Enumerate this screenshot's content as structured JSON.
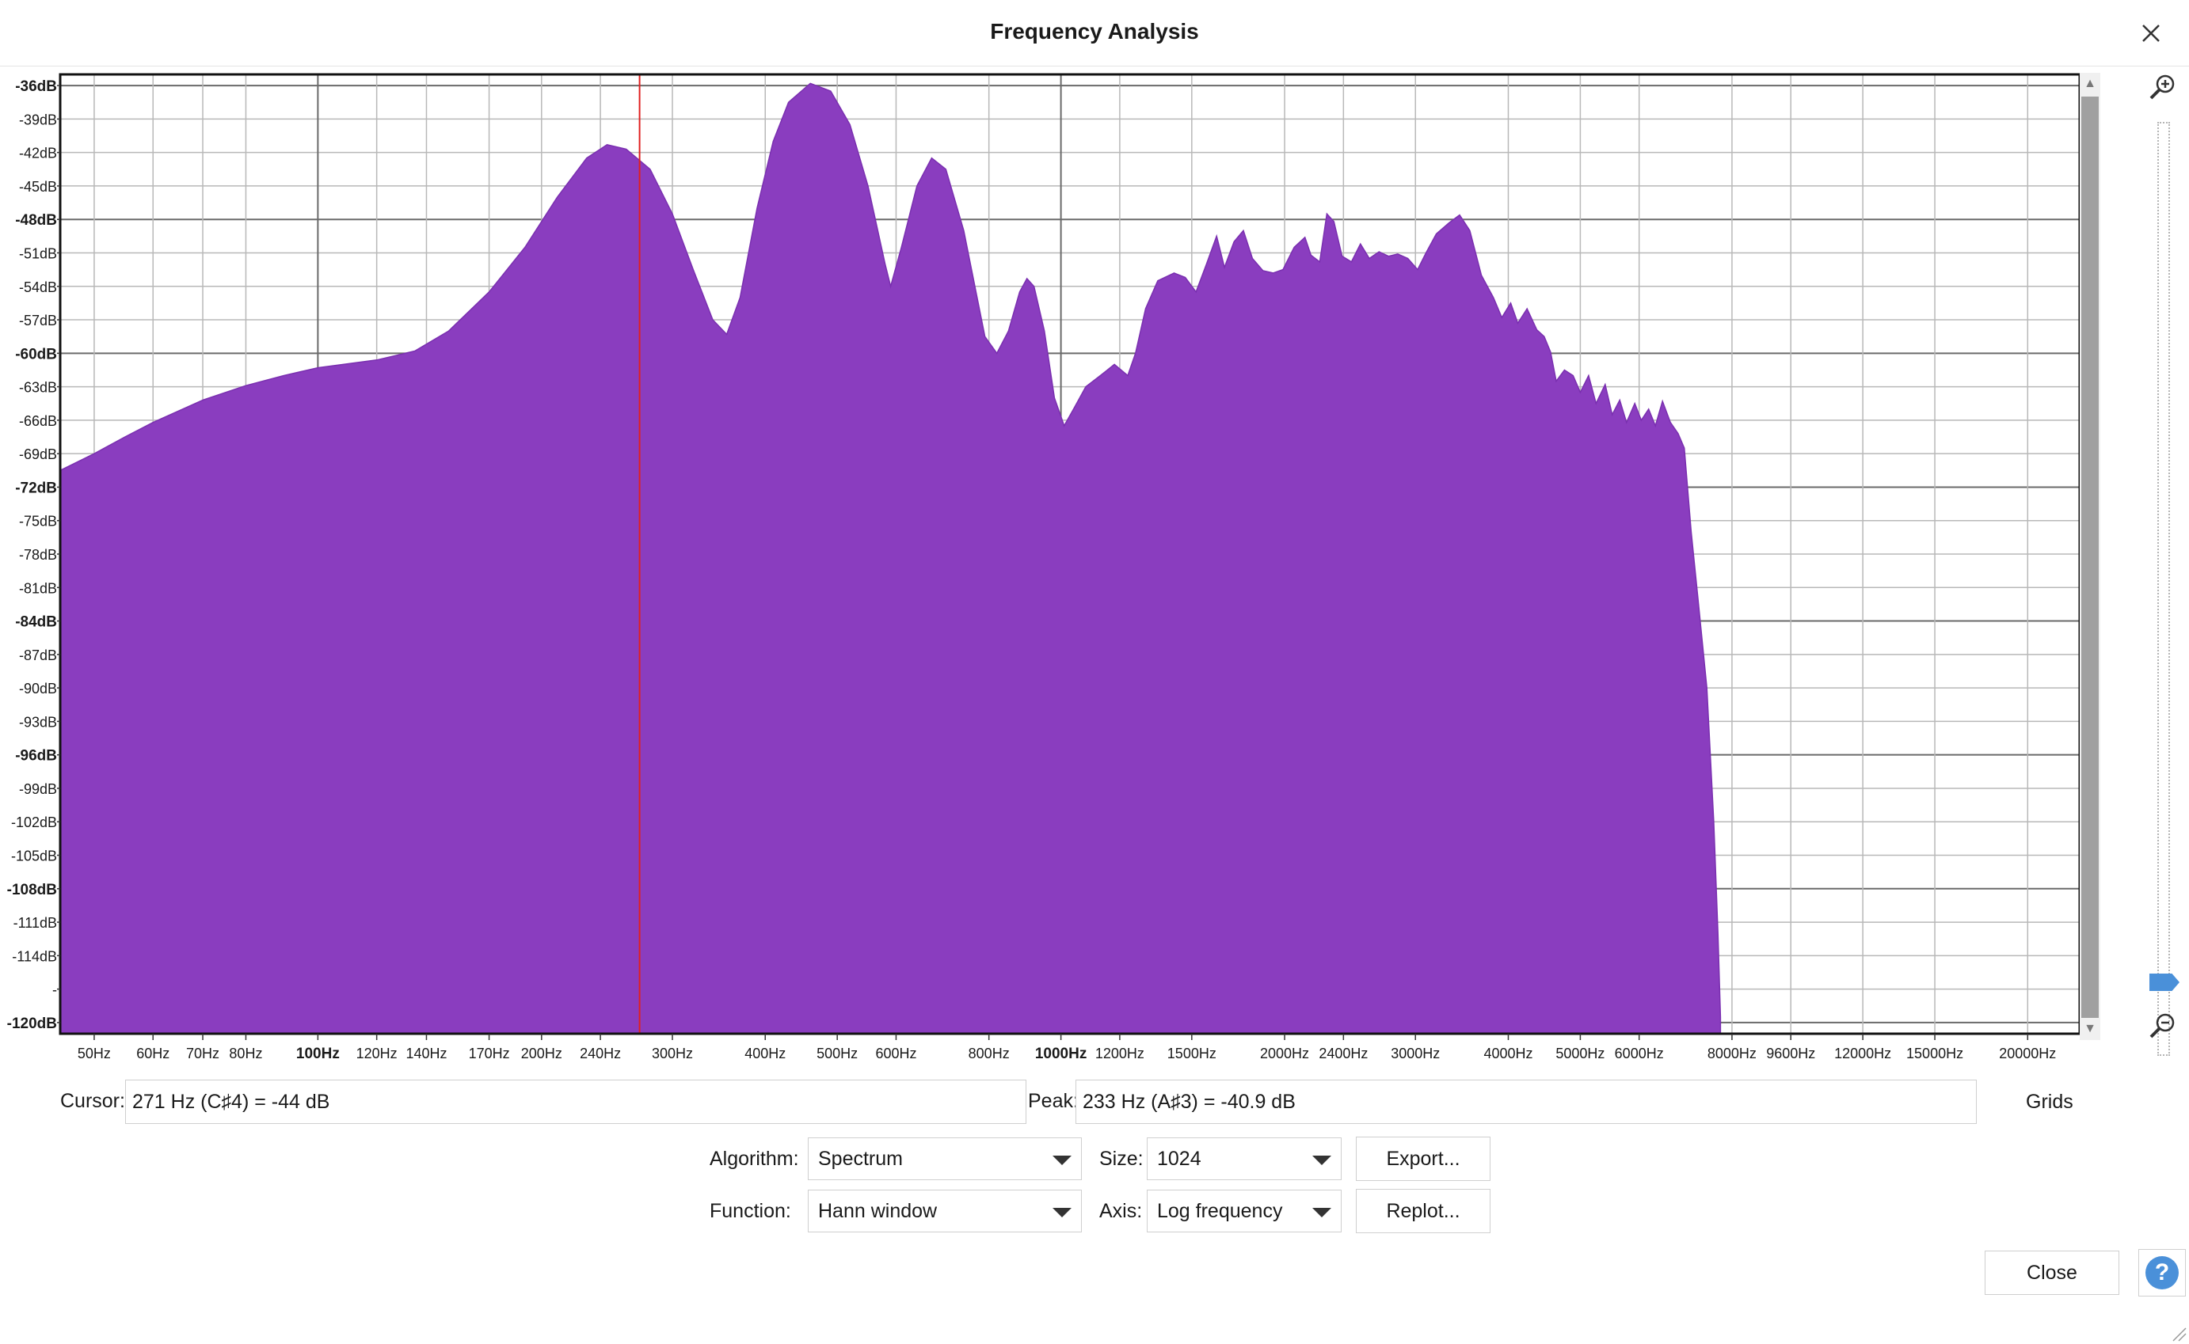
{
  "window": {
    "title": "Frequency Analysis"
  },
  "chart_data": {
    "type": "area",
    "xscale": "log",
    "xlim": [
      45,
      23500
    ],
    "ylim": [
      -121,
      -35
    ],
    "grid": true,
    "color": "#8a3dbf",
    "cursor_frequency": 271,
    "x_tick_labels": [
      {
        "f": 50,
        "label": "50Hz",
        "major": false
      },
      {
        "f": 60,
        "label": "60Hz",
        "major": false
      },
      {
        "f": 70,
        "label": "70Hz",
        "major": false
      },
      {
        "f": 80,
        "label": "80Hz",
        "major": false
      },
      {
        "f": 100,
        "label": "100Hz",
        "major": true
      },
      {
        "f": 120,
        "label": "120Hz",
        "major": false
      },
      {
        "f": 140,
        "label": "140Hz",
        "major": false
      },
      {
        "f": 170,
        "label": "170Hz",
        "major": false
      },
      {
        "f": 200,
        "label": "200Hz",
        "major": false
      },
      {
        "f": 240,
        "label": "240Hz",
        "major": false
      },
      {
        "f": 300,
        "label": "300Hz",
        "major": false
      },
      {
        "f": 400,
        "label": "400Hz",
        "major": false
      },
      {
        "f": 500,
        "label": "500Hz",
        "major": false
      },
      {
        "f": 600,
        "label": "600Hz",
        "major": false
      },
      {
        "f": 800,
        "label": "800Hz",
        "major": false
      },
      {
        "f": 1000,
        "label": "1000Hz",
        "major": true
      },
      {
        "f": 1200,
        "label": "1200Hz",
        "major": false
      },
      {
        "f": 1500,
        "label": "1500Hz",
        "major": false
      },
      {
        "f": 2000,
        "label": "2000Hz",
        "major": false
      },
      {
        "f": 2400,
        "label": "2400Hz",
        "major": false
      },
      {
        "f": 3000,
        "label": "3000Hz",
        "major": false
      },
      {
        "f": 4000,
        "label": "4000Hz",
        "major": false
      },
      {
        "f": 5000,
        "label": "5000Hz",
        "major": false
      },
      {
        "f": 6000,
        "label": "6000Hz",
        "major": false
      },
      {
        "f": 8000,
        "label": "8000Hz",
        "major": false
      },
      {
        "f": 9600,
        "label": "9600Hz",
        "major": false
      },
      {
        "f": 12000,
        "label": "12000Hz",
        "major": false
      },
      {
        "f": 15000,
        "label": "15000Hz",
        "major": false
      },
      {
        "f": 20000,
        "label": "20000Hz",
        "major": false
      }
    ],
    "y_tick_labels": [
      {
        "v": -36,
        "label": "-36dB",
        "major": true
      },
      {
        "v": -39,
        "label": "-39dB",
        "major": false
      },
      {
        "v": -42,
        "label": "-42dB",
        "major": false
      },
      {
        "v": -45,
        "label": "-45dB",
        "major": false
      },
      {
        "v": -48,
        "label": "-48dB",
        "major": true
      },
      {
        "v": -51,
        "label": "-51dB",
        "major": false
      },
      {
        "v": -54,
        "label": "-54dB",
        "major": false
      },
      {
        "v": -57,
        "label": "-57dB",
        "major": false
      },
      {
        "v": -60,
        "label": "-60dB",
        "major": true
      },
      {
        "v": -63,
        "label": "-63dB",
        "major": false
      },
      {
        "v": -66,
        "label": "-66dB",
        "major": false
      },
      {
        "v": -69,
        "label": "-69dB",
        "major": false
      },
      {
        "v": -72,
        "label": "-72dB",
        "major": true
      },
      {
        "v": -75,
        "label": "-75dB",
        "major": false
      },
      {
        "v": -78,
        "label": "-78dB",
        "major": false
      },
      {
        "v": -81,
        "label": "-81dB",
        "major": false
      },
      {
        "v": -84,
        "label": "-84dB",
        "major": true
      },
      {
        "v": -87,
        "label": "-87dB",
        "major": false
      },
      {
        "v": -90,
        "label": "-90dB",
        "major": false
      },
      {
        "v": -93,
        "label": "-93dB",
        "major": false
      },
      {
        "v": -96,
        "label": "-96dB",
        "major": true
      },
      {
        "v": -99,
        "label": "-99dB",
        "major": false
      },
      {
        "v": -102,
        "label": "-102dB",
        "major": false
      },
      {
        "v": -105,
        "label": "-105dB",
        "major": false
      },
      {
        "v": -108,
        "label": "-108dB",
        "major": true
      },
      {
        "v": -111,
        "label": "-111dB",
        "major": false
      },
      {
        "v": -114,
        "label": "-114dB",
        "major": false
      },
      {
        "v": -117,
        "label": "-",
        "major": false
      },
      {
        "v": -120,
        "label": "-120dB",
        "major": true
      }
    ],
    "series": [
      {
        "points": [
          [
            45,
            -70.5
          ],
          [
            50,
            -69
          ],
          [
            55,
            -67.5
          ],
          [
            60,
            -66.2
          ],
          [
            70,
            -64.2
          ],
          [
            80,
            -62.9
          ],
          [
            90,
            -62
          ],
          [
            100,
            -61.3
          ],
          [
            120,
            -60.6
          ],
          [
            135,
            -59.8
          ],
          [
            150,
            -58
          ],
          [
            170,
            -54.5
          ],
          [
            190,
            -50.5
          ],
          [
            210,
            -46
          ],
          [
            230,
            -42.5
          ],
          [
            245,
            -41.3
          ],
          [
            260,
            -41.7
          ],
          [
            280,
            -43.5
          ],
          [
            300,
            -47.5
          ],
          [
            320,
            -52.5
          ],
          [
            340,
            -57
          ],
          [
            355,
            -58.3
          ],
          [
            370,
            -55
          ],
          [
            390,
            -47
          ],
          [
            410,
            -41
          ],
          [
            430,
            -37.5
          ],
          [
            460,
            -35.8
          ],
          [
            490,
            -36.5
          ],
          [
            520,
            -39.5
          ],
          [
            550,
            -45
          ],
          [
            580,
            -52
          ],
          [
            590,
            -54
          ],
          [
            610,
            -50.5
          ],
          [
            640,
            -45
          ],
          [
            670,
            -42.5
          ],
          [
            700,
            -43.5
          ],
          [
            740,
            -49
          ],
          [
            790,
            -58.5
          ],
          [
            820,
            -60
          ],
          [
            850,
            -58
          ],
          [
            880,
            -54.5
          ],
          [
            900,
            -53.3
          ],
          [
            920,
            -54
          ],
          [
            950,
            -58
          ],
          [
            980,
            -64
          ],
          [
            1010,
            -66.5
          ],
          [
            1040,
            -65
          ],
          [
            1080,
            -63
          ],
          [
            1130,
            -62
          ],
          [
            1180,
            -61
          ],
          [
            1230,
            -62
          ],
          [
            1260,
            -60
          ],
          [
            1300,
            -56
          ],
          [
            1350,
            -53.5
          ],
          [
            1420,
            -52.8
          ],
          [
            1470,
            -53.2
          ],
          [
            1520,
            -54.5
          ],
          [
            1570,
            -52
          ],
          [
            1620,
            -49.5
          ],
          [
            1660,
            -52.3
          ],
          [
            1710,
            -50
          ],
          [
            1760,
            -49
          ],
          [
            1810,
            -51.5
          ],
          [
            1870,
            -52.6
          ],
          [
            1930,
            -52.8
          ],
          [
            1990,
            -52.5
          ],
          [
            2060,
            -50.5
          ],
          [
            2130,
            -49.6
          ],
          [
            2170,
            -51.2
          ],
          [
            2230,
            -51.8
          ],
          [
            2280,
            -47.5
          ],
          [
            2330,
            -48.2
          ],
          [
            2390,
            -51.3
          ],
          [
            2460,
            -51.8
          ],
          [
            2530,
            -50.2
          ],
          [
            2600,
            -51.5
          ],
          [
            2680,
            -50.9
          ],
          [
            2760,
            -51.3
          ],
          [
            2840,
            -51.1
          ],
          [
            2930,
            -51.5
          ],
          [
            3020,
            -52.5
          ],
          [
            3100,
            -51
          ],
          [
            3200,
            -49.3
          ],
          [
            3330,
            -48.3
          ],
          [
            3440,
            -47.6
          ],
          [
            3550,
            -49
          ],
          [
            3680,
            -53
          ],
          [
            3820,
            -55
          ],
          [
            3920,
            -56.8
          ],
          [
            4030,
            -55.5
          ],
          [
            4120,
            -57.3
          ],
          [
            4240,
            -56
          ],
          [
            4370,
            -57.9
          ],
          [
            4470,
            -58.5
          ],
          [
            4560,
            -59.9
          ],
          [
            4640,
            -62.5
          ],
          [
            4760,
            -61.5
          ],
          [
            4890,
            -62
          ],
          [
            5000,
            -63.5
          ],
          [
            5130,
            -62
          ],
          [
            5250,
            -64.5
          ],
          [
            5400,
            -62.8
          ],
          [
            5520,
            -65.5
          ],
          [
            5650,
            -64.2
          ],
          [
            5770,
            -66.2
          ],
          [
            5920,
            -64.5
          ],
          [
            6040,
            -66
          ],
          [
            6180,
            -65
          ],
          [
            6310,
            -66.5
          ],
          [
            6450,
            -64.3
          ],
          [
            6610,
            -66.2
          ],
          [
            6770,
            -67.2
          ],
          [
            6900,
            -68.5
          ],
          [
            7050,
            -76
          ],
          [
            7200,
            -82
          ],
          [
            7400,
            -90
          ],
          [
            7560,
            -102
          ],
          [
            7660,
            -112
          ],
          [
            7720,
            -119.5
          ]
        ]
      }
    ]
  },
  "cursor": {
    "label": "Cursor:",
    "value": "271 Hz (C♯4) = -44 dB"
  },
  "peak": {
    "label": "Peak:",
    "value": "233 Hz (A♯3) = -40.9 dB"
  },
  "grids_label": "Grids",
  "controls": {
    "algorithm_label": "Algorithm:",
    "algorithm_value": "Spectrum",
    "size_label": "Size:",
    "size_value": "1024",
    "export_label": "Export...",
    "function_label": "Function:",
    "function_value": "Hann window",
    "axis_label": "Axis:",
    "axis_value": "Log frequency",
    "replot_label": "Replot..."
  },
  "close_label": "Close",
  "help_label": "?"
}
